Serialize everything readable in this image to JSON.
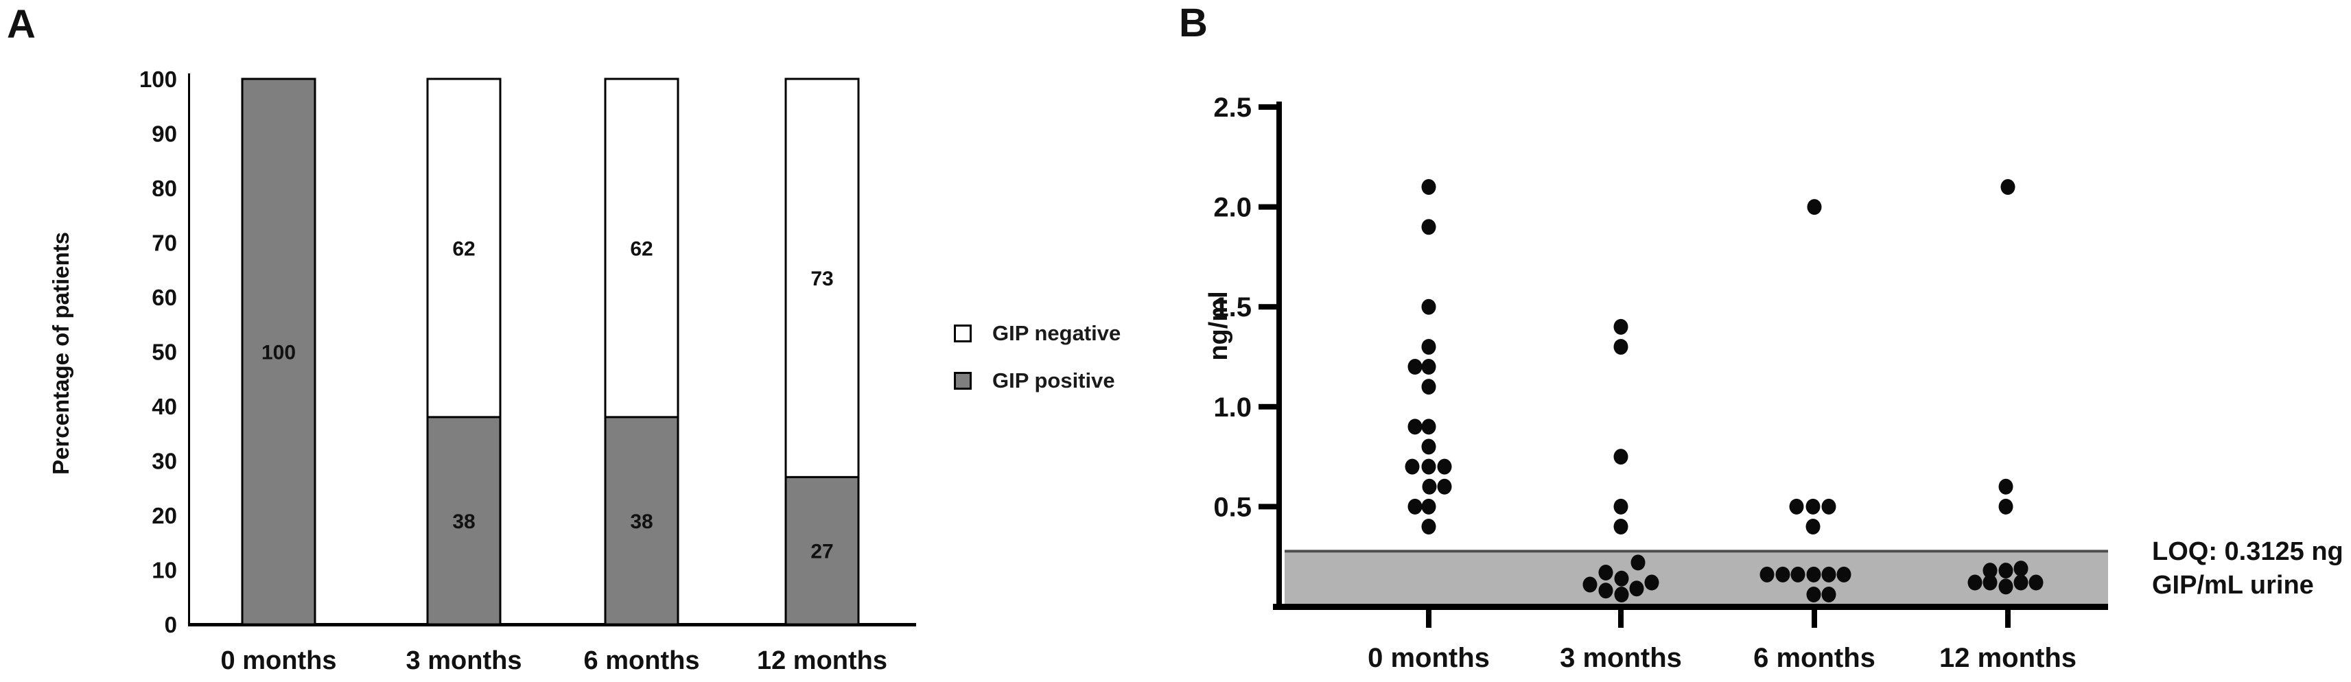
{
  "figure": {
    "panel_a_letter": "A",
    "panel_b_letter": "B"
  },
  "colors": {
    "gip_positive_fill": "#7f7f7f",
    "gip_negative_fill": "#ffffff",
    "loq_band_fill": "#b3b3b3",
    "loq_band_edge": "#4d4d4d",
    "axis_and_text": "#000000",
    "dot_fill": "#0a0a0a"
  },
  "chart_data": [
    {
      "type": "bar",
      "panel": "A",
      "title": "",
      "xlabel": "",
      "ylabel": "Percentage of patients",
      "ylim": [
        0,
        100
      ],
      "yticks": [
        0,
        10,
        20,
        30,
        40,
        50,
        60,
        70,
        80,
        90,
        100
      ],
      "categories": [
        "0 months",
        "3 months",
        "6 months",
        "12 months"
      ],
      "series": [
        {
          "name": "GIP negative",
          "color": "#ffffff",
          "values": [
            0,
            62,
            62,
            73
          ]
        },
        {
          "name": "GIP positive",
          "color": "#7f7f7f",
          "values": [
            100,
            38,
            38,
            27
          ]
        }
      ],
      "bar_labels": {
        "negative": [
          "",
          "62",
          "62",
          "73"
        ],
        "positive": [
          "100",
          "38",
          "38",
          "27"
        ]
      },
      "legend_position": "right",
      "grid": false,
      "stacked": true
    },
    {
      "type": "scatter",
      "panel": "B",
      "title": "",
      "xlabel": "",
      "ylabel": "ng/ml",
      "ylim": [
        0,
        2.65
      ],
      "yticks": [
        "0.5",
        "1.0",
        "1.5",
        "2.0",
        "2.5"
      ],
      "categories": [
        "0 months",
        "3 months",
        "6 months",
        "12 months"
      ],
      "loq_band": {
        "from": 0,
        "to": 0.27,
        "loq_value_text": "LOQ: 0.3125 ng",
        "loq_unit_text": "GIP/mL urine",
        "color": "#b3b3b3"
      },
      "series": [
        {
          "name": "0 months",
          "points": [
            {
              "v": 2.1,
              "j": 0
            },
            {
              "v": 1.9,
              "j": 0
            },
            {
              "v": 1.5,
              "j": 0
            },
            {
              "v": 1.3,
              "j": 0
            },
            {
              "v": 1.2,
              "j": -20
            },
            {
              "v": 1.2,
              "j": 0
            },
            {
              "v": 1.1,
              "j": 0
            },
            {
              "v": 0.9,
              "j": -20
            },
            {
              "v": 0.9,
              "j": 0
            },
            {
              "v": 0.8,
              "j": 0
            },
            {
              "v": 0.7,
              "j": -24
            },
            {
              "v": 0.7,
              "j": 0
            },
            {
              "v": 0.7,
              "j": 23
            },
            {
              "v": 0.6,
              "j": 1
            },
            {
              "v": 0.6,
              "j": 23
            },
            {
              "v": 0.5,
              "j": -20
            },
            {
              "v": 0.5,
              "j": 0
            },
            {
              "v": 0.4,
              "j": 0
            }
          ]
        },
        {
          "name": "3 months",
          "points": [
            {
              "v": 1.4,
              "j": 0
            },
            {
              "v": 1.3,
              "j": 0
            },
            {
              "v": 0.75,
              "j": 0
            },
            {
              "v": 0.5,
              "j": 0
            },
            {
              "v": 0.4,
              "j": 0
            },
            {
              "v": 0.22,
              "j": 25
            },
            {
              "v": 0.17,
              "j": -22
            },
            {
              "v": 0.14,
              "j": 1
            },
            {
              "v": 0.11,
              "j": -45
            },
            {
              "v": 0.08,
              "j": -22
            },
            {
              "v": 0.06,
              "j": 1
            },
            {
              "v": 0.09,
              "j": 23
            },
            {
              "v": 0.12,
              "j": 45
            }
          ]
        },
        {
          "name": "6 months",
          "points": [
            {
              "v": 2.0,
              "j": 0
            },
            {
              "v": 0.5,
              "j": -26
            },
            {
              "v": 0.5,
              "j": -2
            },
            {
              "v": 0.5,
              "j": 21
            },
            {
              "v": 0.4,
              "j": -2
            },
            {
              "v": 0.16,
              "j": -69
            },
            {
              "v": 0.16,
              "j": -46
            },
            {
              "v": 0.16,
              "j": -24
            },
            {
              "v": 0.16,
              "j": -1
            },
            {
              "v": 0.16,
              "j": 21
            },
            {
              "v": 0.16,
              "j": 43
            },
            {
              "v": 0.06,
              "j": -1
            },
            {
              "v": 0.06,
              "j": 21
            }
          ]
        },
        {
          "name": "12 months",
          "points": [
            {
              "v": 2.1,
              "j": 0
            },
            {
              "v": 0.6,
              "j": -3
            },
            {
              "v": 0.5,
              "j": -3
            },
            {
              "v": 0.19,
              "j": 19
            },
            {
              "v": 0.18,
              "j": -3
            },
            {
              "v": 0.18,
              "j": -26
            },
            {
              "v": 0.12,
              "j": -48
            },
            {
              "v": 0.12,
              "j": -26
            },
            {
              "v": 0.1,
              "j": -3
            },
            {
              "v": 0.12,
              "j": 19
            },
            {
              "v": 0.12,
              "j": 41
            }
          ]
        }
      ],
      "grid": false
    }
  ]
}
